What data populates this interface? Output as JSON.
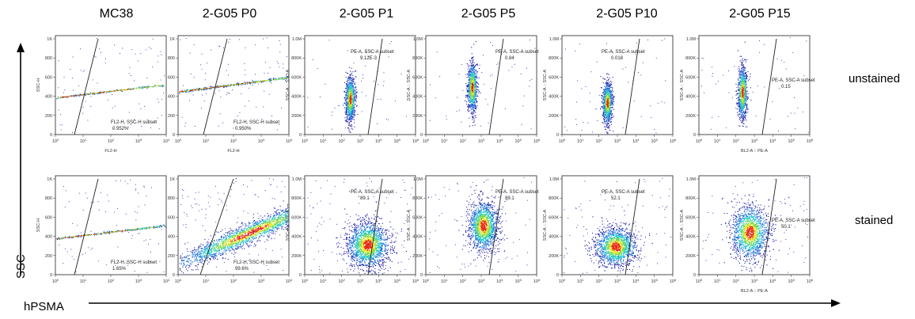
{
  "figure": {
    "y_axis_label": "SSC",
    "x_axis_label": "hPSMA",
    "columns": [
      "MC38",
      "2-G05 P0",
      "2-G05 P1",
      "2-G05 P5",
      "2-G05 P10",
      "2-G05 P15"
    ],
    "rows": [
      "unstained",
      "stained"
    ]
  },
  "chart_data": [
    {
      "type": "scatter",
      "sample": "MC38",
      "condition": "unstained",
      "instrument": "old",
      "xlabel": "FL2-H",
      "ylabel": "SSC-H",
      "x_ticks": [
        "10^0",
        "10^1",
        "10^2",
        "10^3",
        "10^4"
      ],
      "y_ticks": [
        "0",
        "200",
        "400",
        "600",
        "800",
        "1K"
      ],
      "gate": {
        "name": "FL2-H, SSC-H subset",
        "value": "0.952%"
      },
      "cloud": {
        "cx": 0.8,
        "cy": 410,
        "sx": 0.12,
        "sy": 160,
        "tilt": 120,
        "n": 1400,
        "xlim": [
          0,
          4
        ],
        "ylim": [
          0,
          1023
        ]
      }
    },
    {
      "type": "scatter",
      "sample": "2-G05 P0",
      "condition": "unstained",
      "instrument": "old",
      "xlabel": "FL2-H",
      "ylabel": "",
      "x_ticks": [
        "10^0",
        "10^1",
        "10^2",
        "10^3",
        "10^4"
      ],
      "y_ticks": [
        "0",
        "200",
        "400",
        "600",
        "800",
        "1K"
      ],
      "gate": {
        "name": "FL2-H, SSC-H subset",
        "value": "0.950%"
      },
      "cloud": {
        "cx": 0.95,
        "cy": 480,
        "sx": 0.14,
        "sy": 170,
        "tilt": 110,
        "n": 1600,
        "xlim": [
          0,
          4
        ],
        "ylim": [
          0,
          1023
        ]
      }
    },
    {
      "type": "scatter",
      "sample": "2-G05 P1",
      "condition": "unstained",
      "instrument": "new",
      "xlabel": "",
      "ylabel": "SSC-A :: SSC-A",
      "x_ticks": [
        "10^0",
        "10^1",
        "10^2",
        "10^3",
        "10^4",
        "10^5",
        "10^6"
      ],
      "y_ticks": [
        "0",
        "200K",
        "400K",
        "600K",
        "800K",
        "1.0M"
      ],
      "gate": {
        "name": "PE-A, SSC-A subset",
        "value": "9.12E-3"
      },
      "cloud": {
        "cx": 2.45,
        "cy": 0.38,
        "sx": 0.13,
        "sy": 0.12,
        "tilt": 0.35,
        "n": 900,
        "xlim": [
          0,
          6
        ],
        "ylim": [
          0,
          1.05
        ]
      }
    },
    {
      "type": "scatter",
      "sample": "2-G05 P5",
      "condition": "unstained",
      "instrument": "new",
      "xlabel": "",
      "ylabel": "SSC-A :: SSC-A",
      "x_ticks": [
        "10^0",
        "10^1",
        "10^2",
        "10^3",
        "10^4",
        "10^5",
        "10^6"
      ],
      "y_ticks": [
        "0",
        "200K",
        "400K",
        "600K",
        "800K",
        "1.0M"
      ],
      "gate": {
        "name": "PE-A, SSC-A subset",
        "value": "0.84"
      },
      "cloud": {
        "cx": 2.5,
        "cy": 0.5,
        "sx": 0.13,
        "sy": 0.13,
        "tilt": 0.35,
        "n": 900,
        "xlim": [
          0,
          6
        ],
        "ylim": [
          0,
          1.05
        ]
      }
    },
    {
      "type": "scatter",
      "sample": "2-G05 P10",
      "condition": "unstained",
      "instrument": "new",
      "xlabel": "",
      "ylabel": "SSC-A :: SSC-A",
      "x_ticks": [
        "10^0",
        "10^1",
        "10^2",
        "10^3",
        "10^4",
        "10^5",
        "10^6"
      ],
      "y_ticks": [
        "0",
        "200K",
        "400K",
        "600K",
        "800K",
        "1.0M"
      ],
      "gate": {
        "name": "PE-A, SSC-A subset",
        "value": "0.018"
      },
      "cloud": {
        "cx": 2.45,
        "cy": 0.34,
        "sx": 0.13,
        "sy": 0.11,
        "tilt": 0.35,
        "n": 900,
        "xlim": [
          0,
          6
        ],
        "ylim": [
          0,
          1.05
        ]
      }
    },
    {
      "type": "scatter",
      "sample": "2-G05 P15",
      "condition": "unstained",
      "instrument": "new",
      "xlabel": "BL2-A :: PE-A",
      "ylabel": "SSC-A :: SSC-A",
      "x_ticks": [
        "10^0",
        "10^1",
        "10^2",
        "10^3",
        "10^4",
        "10^5",
        "10^6"
      ],
      "y_ticks": [
        "0",
        "200K",
        "400K",
        "600K",
        "800K",
        "1.0M"
      ],
      "gate": {
        "name": "PE-A, SSC-A subset",
        "value": "0.15"
      },
      "cloud": {
        "cx": 2.35,
        "cy": 0.45,
        "sx": 0.12,
        "sy": 0.14,
        "tilt": 0.35,
        "n": 900,
        "xlim": [
          0,
          6
        ],
        "ylim": [
          0,
          1.05
        ]
      }
    },
    {
      "type": "scatter",
      "sample": "MC38",
      "condition": "stained",
      "instrument": "old",
      "xlabel": "",
      "ylabel": "SSC-H",
      "x_ticks": [
        "10^0",
        "10^1",
        "10^2",
        "10^3",
        "10^4"
      ],
      "y_ticks": [
        "0",
        "200",
        "400",
        "600",
        "800",
        "1K"
      ],
      "gate": {
        "name": "FL2-H, SSC-H subset",
        "value": "1.65%"
      },
      "cloud": {
        "cx": 0.75,
        "cy": 400,
        "sx": 0.12,
        "sy": 160,
        "tilt": 120,
        "n": 1400,
        "xlim": [
          0,
          4
        ],
        "ylim": [
          0,
          1023
        ]
      }
    },
    {
      "type": "scatter",
      "sample": "2-G05 P0",
      "condition": "stained",
      "instrument": "old",
      "xlabel": "",
      "ylabel": "",
      "x_ticks": [
        "10^0",
        "10^1",
        "10^2",
        "10^3",
        "10^4"
      ],
      "y_ticks": [
        "0",
        "200",
        "400",
        "600",
        "800",
        "1K"
      ],
      "gate": {
        "name": "FL2-H, SSC-H subset",
        "value": "99.6%"
      },
      "cloud": {
        "cx": 2.55,
        "cy": 430,
        "sx": 0.42,
        "sy": 180,
        "tilt": 30,
        "n": 2200,
        "xlim": [
          0,
          4
        ],
        "ylim": [
          0,
          1023
        ]
      }
    },
    {
      "type": "scatter",
      "sample": "2-G05 P1",
      "condition": "stained",
      "instrument": "new",
      "xlabel": "",
      "ylabel": "SSC-A :: SSC-A",
      "x_ticks": [
        "10^0",
        "10^1",
        "10^2",
        "10^3",
        "10^4",
        "10^5",
        "10^6"
      ],
      "y_ticks": [
        "0",
        "200K",
        "400K",
        "600K",
        "800K",
        "1.0M"
      ],
      "gate": {
        "name": "PE-A, SSC-A subset",
        "value": "89.1"
      },
      "cloud": {
        "cx": 3.4,
        "cy": 0.32,
        "sx": 0.55,
        "sy": 0.12,
        "tilt": 0.02,
        "n": 1800,
        "xlim": [
          0,
          6
        ],
        "ylim": [
          0,
          1.05
        ]
      }
    },
    {
      "type": "scatter",
      "sample": "2-G05 P5",
      "condition": "stained",
      "instrument": "new",
      "xlabel": "",
      "ylabel": "SSC-A :: SSC-A",
      "x_ticks": [
        "10^0",
        "10^1",
        "10^2",
        "10^3",
        "10^4",
        "10^5",
        "10^6"
      ],
      "y_ticks": [
        "0",
        "200K",
        "400K",
        "600K",
        "800K",
        "1.0M"
      ],
      "gate": {
        "name": "PE-A, SSC-A subset",
        "value": "89.1"
      },
      "cloud": {
        "cx": 3.1,
        "cy": 0.52,
        "sx": 0.4,
        "sy": 0.13,
        "tilt": 0.02,
        "n": 1500,
        "xlim": [
          0,
          6
        ],
        "ylim": [
          0,
          1.05
        ]
      }
    },
    {
      "type": "scatter",
      "sample": "2-G05 P10",
      "condition": "stained",
      "instrument": "new",
      "xlabel": "",
      "ylabel": "SSC-A :: SSC-A",
      "x_ticks": [
        "10^0",
        "10^1",
        "10^2",
        "10^3",
        "10^4",
        "10^5",
        "10^6"
      ],
      "y_ticks": [
        "0",
        "200K",
        "400K",
        "600K",
        "800K",
        "1.0M"
      ],
      "gate": {
        "name": "PE-A, SSC-A subset",
        "value": "52.1"
      },
      "cloud": {
        "cx": 2.9,
        "cy": 0.3,
        "sx": 0.55,
        "sy": 0.1,
        "tilt": 0.02,
        "n": 1500,
        "xlim": [
          0,
          6
        ],
        "ylim": [
          0,
          1.05
        ]
      }
    },
    {
      "type": "scatter",
      "sample": "2-G05 P15",
      "condition": "stained",
      "instrument": "new",
      "xlabel": "BL2-A :: PE-A",
      "ylabel": "SSC-A :: SSC-A",
      "x_ticks": [
        "10^0",
        "10^1",
        "10^2",
        "10^3",
        "10^4",
        "10^5",
        "10^6"
      ],
      "y_ticks": [
        "0",
        "200K",
        "400K",
        "600K",
        "800K",
        "1.0M"
      ],
      "gate": {
        "name": "PE-A, SSC-A subset",
        "value": "50.1"
      },
      "cloud": {
        "cx": 2.75,
        "cy": 0.45,
        "sx": 0.5,
        "sy": 0.14,
        "tilt": 0.02,
        "n": 1500,
        "xlim": [
          0,
          6
        ],
        "ylim": [
          0,
          1.05
        ]
      }
    }
  ],
  "colors": {
    "low": "#1a1aa8",
    "mid": "#19c8c8",
    "high": "#e8e820",
    "peak": "#e82010",
    "frame": "#222222",
    "gate": "#222222"
  }
}
